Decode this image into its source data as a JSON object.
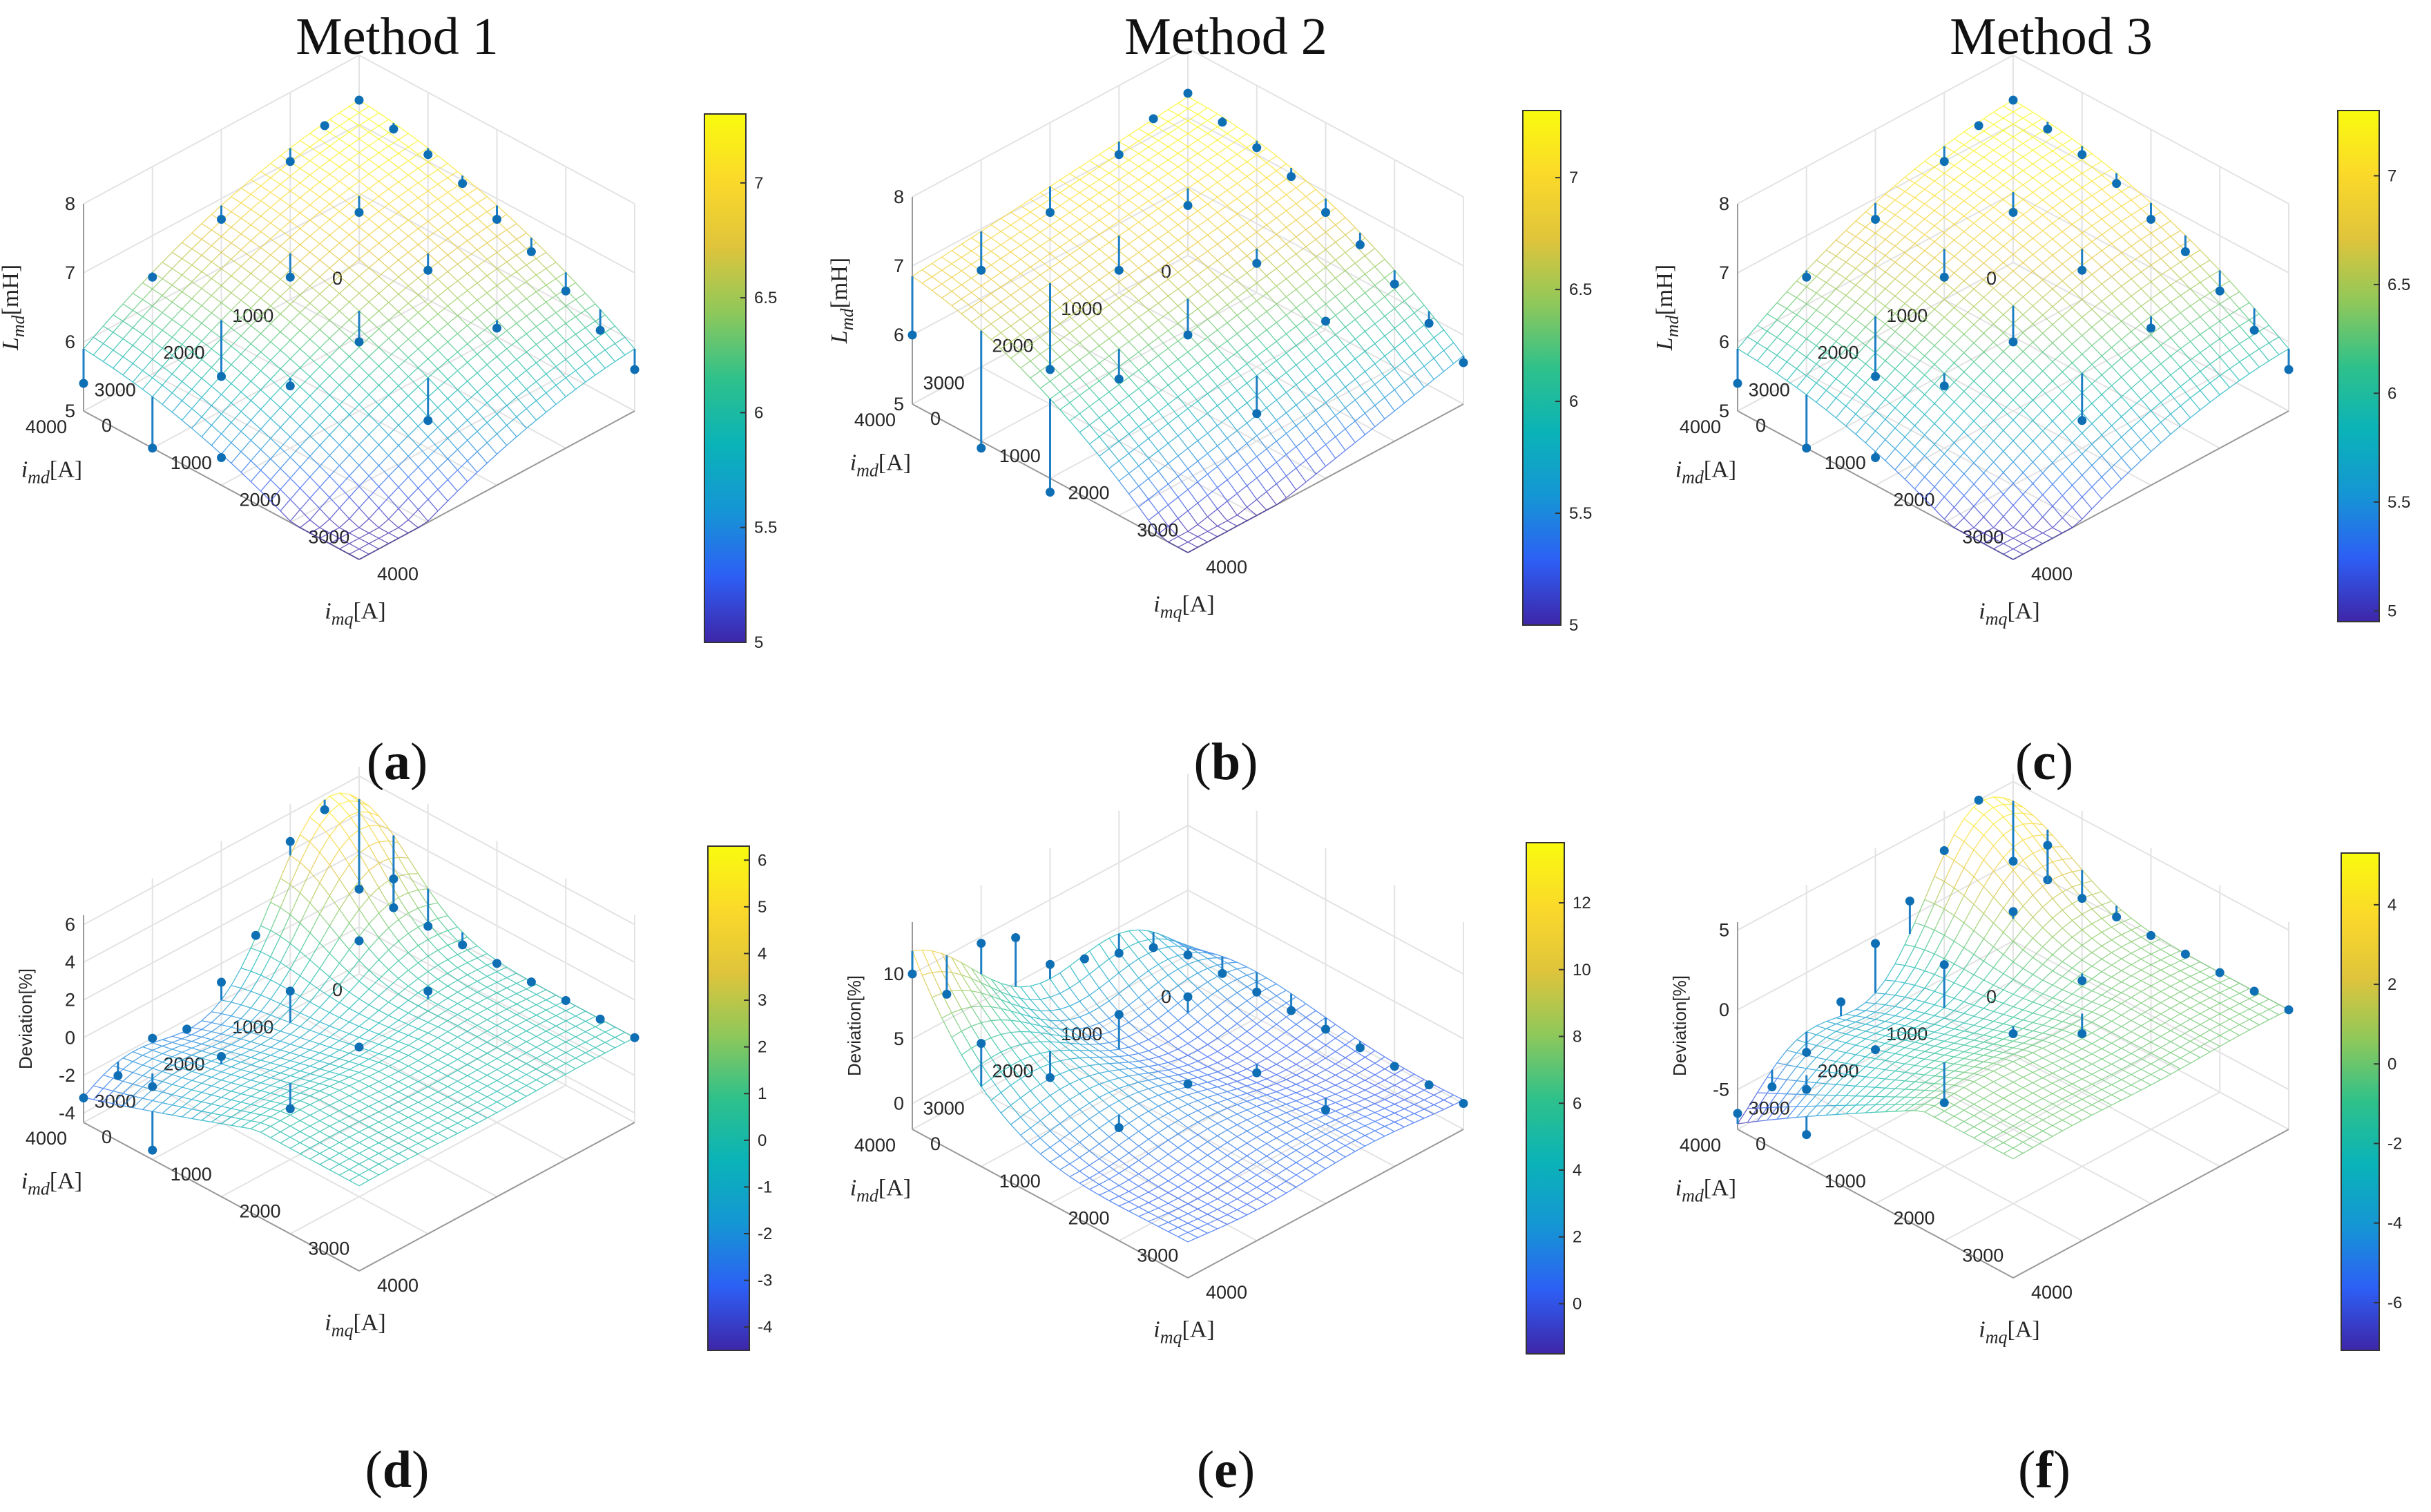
{
  "column_titles": [
    "Method 1",
    "Method 2",
    "Method 3"
  ],
  "colorbar_colors": [
    "#3e26a8",
    "#2d5ff5",
    "#1596d4",
    "#0ab3b8",
    "#2fc18a",
    "#8fc85a",
    "#e0c43b",
    "#fbd92a",
    "#f9fb0e"
  ],
  "chart_data": [
    {
      "id": "a",
      "panel_label": "a",
      "type": "surface3d",
      "xlabel": {
        "prefix": "i",
        "sub": "md",
        "unit": "[A]"
      },
      "ylabel": {
        "prefix": "i",
        "sub": "mq",
        "unit": "[A]"
      },
      "zlabel": {
        "prefix": "L",
        "sub": "md",
        "unit": "[mH]"
      },
      "x_ticks": [
        "0",
        "1000",
        "2000",
        "3000",
        "4000"
      ],
      "y_ticks": [
        "0",
        "1000",
        "2000",
        "3000",
        "4000"
      ],
      "zlim": [
        5,
        8
      ],
      "z_ticks": [
        "5",
        "6",
        "7",
        "8"
      ],
      "clim": [
        5,
        7.3
      ],
      "colorbar_ticks": [
        "5",
        "5.5",
        "6",
        "6.5",
        "7"
      ],
      "surface_model": "lmd1",
      "stems": [
        [
          0,
          0,
          7.35
        ],
        [
          0,
          500,
          7.2
        ],
        [
          0,
          1000,
          7.1
        ],
        [
          0,
          1500,
          6.95
        ],
        [
          0,
          2000,
          6.7
        ],
        [
          0,
          2500,
          6.5
        ],
        [
          0,
          3000,
          6.2
        ],
        [
          0,
          3500,
          5.9
        ],
        [
          0,
          4000,
          5.6
        ],
        [
          500,
          0,
          7.25
        ],
        [
          1000,
          0,
          7.0
        ],
        [
          2000,
          0,
          6.7
        ],
        [
          3000,
          0,
          6.4
        ],
        [
          4000,
          0,
          5.4
        ],
        [
          1000,
          1000,
          6.8
        ],
        [
          1000,
          2000,
          6.5
        ],
        [
          1000,
          3000,
          6.2
        ],
        [
          2000,
          1000,
          6.4
        ],
        [
          2000,
          2000,
          6.0
        ],
        [
          2000,
          3000,
          5.4
        ],
        [
          3000,
          1000,
          5.5
        ],
        [
          3000,
          2000,
          5.9
        ],
        [
          4000,
          1000,
          5.0
        ],
        [
          4000,
          2000,
          5.4
        ]
      ]
    },
    {
      "id": "b",
      "panel_label": "b",
      "type": "surface3d",
      "xlabel": {
        "prefix": "i",
        "sub": "md",
        "unit": "[A]"
      },
      "ylabel": {
        "prefix": "i",
        "sub": "mq",
        "unit": "[A]"
      },
      "zlabel": {
        "prefix": "L",
        "sub": "md",
        "unit": "[mH]"
      },
      "x_ticks": [
        "0",
        "1000",
        "2000",
        "3000",
        "4000"
      ],
      "y_ticks": [
        "0",
        "1000",
        "2000",
        "3000",
        "4000"
      ],
      "zlim": [
        5,
        8
      ],
      "z_ticks": [
        "5",
        "6",
        "7",
        "8"
      ],
      "clim": [
        5,
        7.3
      ],
      "colorbar_ticks": [
        "5",
        "5.5",
        "6",
        "6.5",
        "7"
      ],
      "surface_model": "lmd2",
      "stems": [
        [
          0,
          0,
          7.35
        ],
        [
          0,
          500,
          7.2
        ],
        [
          0,
          1000,
          7.1
        ],
        [
          0,
          1500,
          6.95
        ],
        [
          0,
          2000,
          6.7
        ],
        [
          0,
          2500,
          6.5
        ],
        [
          0,
          3000,
          6.2
        ],
        [
          0,
          3500,
          5.9
        ],
        [
          0,
          4000,
          5.6
        ],
        [
          500,
          0,
          7.25
        ],
        [
          1000,
          0,
          7.0
        ],
        [
          2000,
          0,
          6.7
        ],
        [
          3000,
          0,
          6.4
        ],
        [
          4000,
          0,
          6.0
        ],
        [
          1000,
          1000,
          6.8
        ],
        [
          1000,
          2000,
          6.5
        ],
        [
          1000,
          3000,
          6.2
        ],
        [
          2000,
          1000,
          6.4
        ],
        [
          2000,
          2000,
          6.0
        ],
        [
          2000,
          3000,
          5.4
        ],
        [
          3000,
          1000,
          5.5
        ],
        [
          3000,
          2000,
          5.9
        ],
        [
          4000,
          1000,
          4.9
        ],
        [
          4000,
          2000,
          4.8
        ]
      ]
    },
    {
      "id": "c",
      "panel_label": "c",
      "type": "surface3d",
      "xlabel": {
        "prefix": "i",
        "sub": "md",
        "unit": "[A]"
      },
      "ylabel": {
        "prefix": "i",
        "sub": "mq",
        "unit": "[A]"
      },
      "zlabel": {
        "prefix": "L",
        "sub": "md",
        "unit": "[mH]"
      },
      "x_ticks": [
        "0",
        "1000",
        "2000",
        "3000",
        "4000"
      ],
      "y_ticks": [
        "0",
        "1000",
        "2000",
        "3000",
        "4000"
      ],
      "zlim": [
        5,
        8
      ],
      "z_ticks": [
        "5",
        "6",
        "7",
        "8"
      ],
      "clim": [
        4.95,
        7.3
      ],
      "colorbar_ticks": [
        "5",
        "5.5",
        "6",
        "6.5",
        "7"
      ],
      "surface_model": "lmd3",
      "stems": [
        [
          0,
          0,
          7.35
        ],
        [
          0,
          500,
          7.2
        ],
        [
          0,
          1000,
          7.1
        ],
        [
          0,
          1500,
          6.95
        ],
        [
          0,
          2000,
          6.7
        ],
        [
          0,
          2500,
          6.5
        ],
        [
          0,
          3000,
          6.2
        ],
        [
          0,
          3500,
          5.9
        ],
        [
          0,
          4000,
          5.6
        ],
        [
          500,
          0,
          7.25
        ],
        [
          1000,
          0,
          7.0
        ],
        [
          2000,
          0,
          6.7
        ],
        [
          3000,
          0,
          6.4
        ],
        [
          4000,
          0,
          5.4
        ],
        [
          1000,
          1000,
          6.8
        ],
        [
          1000,
          2000,
          6.5
        ],
        [
          1000,
          3000,
          6.2
        ],
        [
          2000,
          1000,
          6.4
        ],
        [
          2000,
          2000,
          6.0
        ],
        [
          2000,
          3000,
          5.4
        ],
        [
          3000,
          1000,
          5.5
        ],
        [
          3000,
          2000,
          5.9
        ],
        [
          4000,
          1000,
          5.0
        ],
        [
          4000,
          2000,
          5.4
        ]
      ]
    },
    {
      "id": "d",
      "panel_label": "d",
      "type": "surface3d",
      "xlabel": {
        "prefix": "i",
        "sub": "md",
        "unit": "[A]"
      },
      "ylabel": {
        "prefix": "i",
        "sub": "mq",
        "unit": "[A]"
      },
      "zlabel": {
        "text": "Deviation[%]"
      },
      "x_ticks": [
        "0",
        "1000",
        "2000",
        "3000",
        "4000"
      ],
      "y_ticks": [
        "0",
        "1000",
        "2000",
        "3000",
        "4000"
      ],
      "zlim": [
        -4.5,
        6.5
      ],
      "z_ticks": [
        "-4",
        "-2",
        "0",
        "2",
        "4",
        "6"
      ],
      "clim": [
        -4.5,
        6.3
      ],
      "colorbar_ticks": [
        "-4",
        "-3",
        "-2",
        "-1",
        "0",
        "1",
        "2",
        "3",
        "4",
        "5",
        "6"
      ],
      "surface_model": "dev1",
      "stems": [
        [
          0,
          0,
          0
        ],
        [
          0,
          500,
          0
        ],
        [
          0,
          1000,
          0
        ],
        [
          0,
          1500,
          0
        ],
        [
          0,
          2000,
          0
        ],
        [
          0,
          2500,
          0
        ],
        [
          0,
          3000,
          0
        ],
        [
          0,
          3500,
          0
        ],
        [
          0,
          4000,
          0
        ],
        [
          500,
          0,
          5.2
        ],
        [
          1000,
          0,
          4.5
        ],
        [
          1500,
          0,
          0.5
        ],
        [
          2000,
          0,
          -1.0
        ],
        [
          2500,
          0,
          -2.5
        ],
        [
          3000,
          0,
          -2.0
        ],
        [
          3500,
          0,
          -3.0
        ],
        [
          4000,
          0,
          -3.2
        ],
        [
          500,
          1000,
          3.5
        ],
        [
          1000,
          1000,
          1.2
        ],
        [
          1000,
          2000,
          0.5
        ],
        [
          2000,
          1000,
          0.5
        ],
        [
          2000,
          2000,
          -0.5
        ],
        [
          3000,
          1000,
          -1.0
        ],
        [
          3000,
          2000,
          -1.8
        ],
        [
          4000,
          1000,
          -4.0
        ],
        [
          3500,
          500,
          -2.6
        ]
      ]
    },
    {
      "id": "e",
      "panel_label": "e",
      "type": "surface3d",
      "xlabel": {
        "prefix": "i",
        "sub": "md",
        "unit": "[A]"
      },
      "ylabel": {
        "prefix": "i",
        "sub": "mq",
        "unit": "[A]"
      },
      "zlabel": {
        "text": "Deviation[%]"
      },
      "x_ticks": [
        "0",
        "1000",
        "2000",
        "3000",
        "4000"
      ],
      "y_ticks": [
        "0",
        "1000",
        "2000",
        "3000",
        "4000"
      ],
      "zlim": [
        -2,
        14
      ],
      "z_ticks": [
        "0",
        "5",
        "10"
      ],
      "clim": [
        -1.5,
        13.8
      ],
      "colorbar_ticks": [
        "0",
        "2",
        "4",
        "6",
        "8",
        "10",
        "12"
      ],
      "surface_model": "dev2",
      "stems": [
        [
          0,
          0,
          0
        ],
        [
          0,
          500,
          0
        ],
        [
          0,
          1000,
          0
        ],
        [
          0,
          1500,
          0
        ],
        [
          0,
          2000,
          0
        ],
        [
          0,
          2500,
          0
        ],
        [
          0,
          3000,
          0
        ],
        [
          0,
          3500,
          0
        ],
        [
          0,
          4000,
          0
        ],
        [
          500,
          0,
          2.0
        ],
        [
          1000,
          0,
          3.0
        ],
        [
          1500,
          0,
          4.0
        ],
        [
          2000,
          0,
          5.0
        ],
        [
          2500,
          0,
          8.5
        ],
        [
          3000,
          0,
          9.5
        ],
        [
          4000,
          0,
          10.0
        ],
        [
          3500,
          0,
          7.0
        ],
        [
          1000,
          1000,
          2.5
        ],
        [
          1000,
          2000,
          -0.5
        ],
        [
          2000,
          1000,
          4.0
        ],
        [
          2000,
          2000,
          1.5
        ],
        [
          3000,
          1000,
          2.0
        ],
        [
          3000,
          2000,
          1.0
        ],
        [
          4000,
          1000,
          7.5
        ],
        [
          1000,
          3000,
          -0.5
        ]
      ]
    },
    {
      "id": "f",
      "panel_label": "f",
      "type": "surface3d",
      "xlabel": {
        "prefix": "i",
        "sub": "md",
        "unit": "[A]"
      },
      "ylabel": {
        "prefix": "i",
        "sub": "mq",
        "unit": "[A]"
      },
      "zlabel": {
        "text": "Deviation[%]"
      },
      "x_ticks": [
        "0",
        "1000",
        "2000",
        "3000",
        "4000"
      ],
      "y_ticks": [
        "0",
        "1000",
        "2000",
        "3000",
        "4000"
      ],
      "zlim": [
        -7.5,
        5.5
      ],
      "z_ticks": [
        "-5",
        "0",
        "5"
      ],
      "clim": [
        -7.2,
        5.3
      ],
      "colorbar_ticks": [
        "-6",
        "-4",
        "-2",
        "0",
        "2",
        "4"
      ],
      "surface_model": "dev3",
      "stems": [
        [
          0,
          0,
          0
        ],
        [
          0,
          500,
          0
        ],
        [
          0,
          1000,
          0
        ],
        [
          0,
          1500,
          0
        ],
        [
          0,
          2000,
          0
        ],
        [
          0,
          2500,
          0
        ],
        [
          0,
          3000,
          0
        ],
        [
          0,
          3500,
          0
        ],
        [
          0,
          4000,
          0
        ],
        [
          500,
          0,
          5.0
        ],
        [
          1000,
          0,
          3.0
        ],
        [
          1500,
          0,
          1.0
        ],
        [
          2000,
          0,
          -0.5
        ],
        [
          2500,
          0,
          -3.0
        ],
        [
          3000,
          0,
          -5.0
        ],
        [
          3500,
          0,
          -6.0
        ],
        [
          4000,
          0,
          -6.5
        ],
        [
          500,
          1000,
          4.5
        ],
        [
          1000,
          1000,
          1.5
        ],
        [
          1000,
          2000,
          -0.5
        ],
        [
          2000,
          1000,
          0.5
        ],
        [
          2000,
          2000,
          -1.5
        ],
        [
          3000,
          1000,
          -2.5
        ],
        [
          3000,
          2000,
          -3.5
        ],
        [
          4000,
          1000,
          -5.5
        ],
        [
          1500,
          2500,
          -1.5
        ],
        [
          3500,
          500,
          -5.0
        ]
      ]
    }
  ]
}
